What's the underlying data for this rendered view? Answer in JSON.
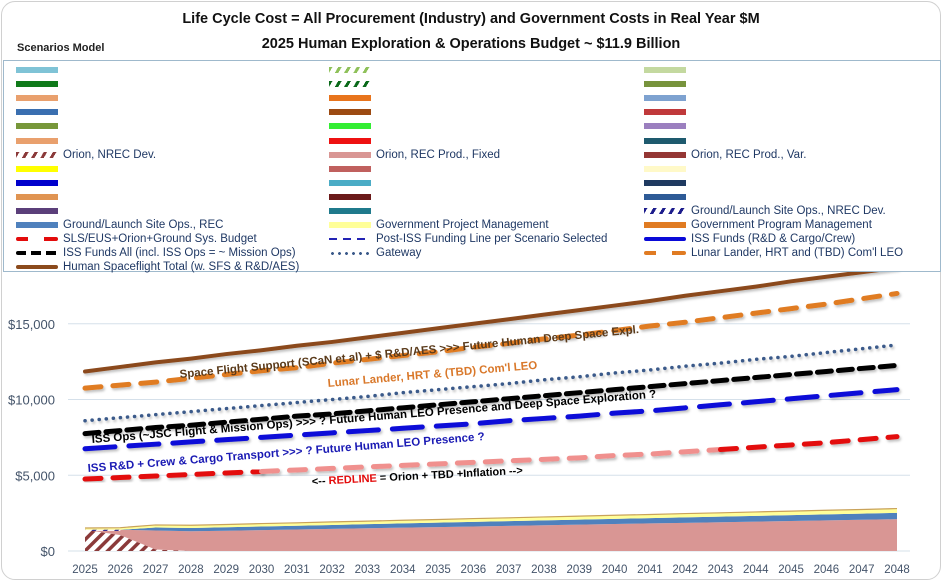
{
  "header": {
    "title_line1": "Life Cycle Cost = All Procurement (Industry) and Government Costs in Real Year $M",
    "title_line2": "2025 Human Exploration & Operations Budget ~ $11.9 Billion",
    "scenarios_label": "Scenarios Model"
  },
  "legend": {
    "columns": [
      [
        {
          "label": "",
          "color": "#7fc3d6",
          "style": "solid"
        },
        {
          "label": "",
          "color": "#0f7a1a",
          "style": "solid"
        },
        {
          "label": "",
          "color": "#e9a06d",
          "style": "solid"
        },
        {
          "label": "",
          "color": "#3a6fb0",
          "style": "solid"
        },
        {
          "label": "",
          "color": "#77973a",
          "style": "solid"
        },
        {
          "label": "",
          "color": "#e9a06d",
          "style": "solid"
        },
        {
          "label": "Orion, NREC Dev.",
          "color": "#8b3a3a",
          "style": "hatch"
        },
        {
          "label": "",
          "color": "#ffff00",
          "style": "solid"
        },
        {
          "label": "",
          "color": "#0000cc",
          "style": "solid"
        },
        {
          "label": "",
          "color": "#e09452",
          "style": "solid"
        },
        {
          "label": "",
          "color": "#5b3f7a",
          "style": "solid"
        },
        {
          "label": "Ground/Launch Site Ops., REC",
          "color": "#4f81bd",
          "style": "solid"
        },
        {
          "label": "SLS/EUS+Orion+Ground Sys. Budget",
          "color": "#e30b0b",
          "style": "dash-wide"
        },
        {
          "label": "ISS Funds All (incl. ISS Ops = ~  Mission Ops)",
          "color": "#000000",
          "style": "dash-medium"
        },
        {
          "label": "Human Spaceflight Total (w. SFS & R&D/AES)",
          "color": "#8b4a1c",
          "style": "line"
        }
      ],
      [
        {
          "label": "",
          "color": "#8fc15a",
          "style": "hatch"
        },
        {
          "label": "",
          "color": "#0a6a1a",
          "style": "hatch"
        },
        {
          "label": "",
          "color": "#e8741c",
          "style": "solid"
        },
        {
          "label": "",
          "color": "#9c4a12",
          "style": "solid"
        },
        {
          "label": "",
          "color": "#33ee33",
          "style": "solid"
        },
        {
          "label": "",
          "color": "#ee1111",
          "style": "solid"
        },
        {
          "label": "Orion, REC Prod., Fixed",
          "color": "#d99694",
          "style": "solid"
        },
        {
          "label": "",
          "color": "#c0605e",
          "style": "solid"
        },
        {
          "label": "",
          "color": "#4bacc6",
          "style": "solid"
        },
        {
          "label": "",
          "color": "#6b1a1a",
          "style": "solid"
        },
        {
          "label": "",
          "color": "#1f7a8c",
          "style": "solid"
        },
        {
          "label": "Government Project Management",
          "color": "#ffff99",
          "style": "solid"
        },
        {
          "label": "Post-ISS Funding Line per Scenario Selected",
          "color": "#2323b4",
          "style": "dash-small"
        },
        {
          "label": "Gateway",
          "color": "#3b5a8a",
          "style": "dot"
        }
      ],
      [
        {
          "label": "",
          "color": "#c4d9a0",
          "style": "solid"
        },
        {
          "label": "",
          "color": "#77933c",
          "style": "solid"
        },
        {
          "label": "",
          "color": "#7ea2d0",
          "style": "solid"
        },
        {
          "label": "",
          "color": "#c0393b",
          "style": "solid"
        },
        {
          "label": "",
          "color": "#9b7fbf",
          "style": "solid"
        },
        {
          "label": "",
          "color": "#1e5a6e",
          "style": "solid"
        },
        {
          "label": "Orion, REC Prod., Var.",
          "color": "#943634",
          "style": "solid"
        },
        {
          "label": "",
          "color": "#fff9c8",
          "style": "solid"
        },
        {
          "label": "",
          "color": "#1f3a60",
          "style": "solid"
        },
        {
          "label": "",
          "color": "#2d5a96",
          "style": "solid"
        },
        {
          "label": "Ground/Launch Site Ops., NREC Dev.",
          "color": "#1c1c8c",
          "style": "hatch"
        },
        {
          "label": "Government Program Management",
          "color": "#e07b22",
          "style": "solid"
        },
        {
          "label": "ISS Funds (R&D & Cargo/Crew)",
          "color": "#0a0ad8",
          "style": "line"
        },
        {
          "label": "Lunar Lander, HRT and (TBD) Com'l LEO",
          "color": "#e07b22",
          "style": "dash-wide"
        }
      ]
    ]
  },
  "chart_data": {
    "type": "line",
    "title": "Life Cycle Cost = All Procurement (Industry) and Government Costs in Real Year $M",
    "subtitle": "2025 Human Exploration & Operations Budget ~ $11.9 Billion",
    "xlabel": "",
    "ylabel": "",
    "x": [
      2025,
      2026,
      2027,
      2028,
      2029,
      2030,
      2031,
      2032,
      2033,
      2034,
      2035,
      2036,
      2037,
      2038,
      2039,
      2040,
      2041,
      2042,
      2043,
      2044,
      2045,
      2046,
      2047,
      2048
    ],
    "ylim": [
      0,
      18000
    ],
    "yticks": [
      0,
      5000,
      10000,
      15000
    ],
    "ytick_labels": [
      "$0",
      "$5,000",
      "$10,000",
      "$15,000"
    ],
    "grid": true,
    "legend_position": "top",
    "series": [
      {
        "name": "Human Spaceflight Total (w. SFS & R&D/AES)",
        "color": "#8b4a1c",
        "style": "line",
        "values": [
          11850,
          12150,
          12450,
          12700,
          13000,
          13250,
          13550,
          13800,
          14100,
          14400,
          14700,
          15000,
          15300,
          15600,
          15900,
          16200,
          16500,
          16850,
          17150,
          17450,
          17800,
          18100,
          18400,
          18700
        ]
      },
      {
        "name": "Lunar Lander, HRT and (TBD) Com'l LEO",
        "color": "#e07b22",
        "style": "dash-wide",
        "values": [
          10750,
          10950,
          11150,
          11400,
          11650,
          11900,
          12100,
          12400,
          12650,
          12900,
          13150,
          13450,
          13700,
          14000,
          14250,
          14550,
          14850,
          15100,
          15400,
          15700,
          16000,
          16300,
          16650,
          17000
        ]
      },
      {
        "name": "Gateway",
        "color": "#3b5a8a",
        "style": "dot",
        "values": [
          8600,
          8800,
          9000,
          9200,
          9400,
          9600,
          9800,
          10000,
          10200,
          10450,
          10650,
          10850,
          11050,
          11300,
          11500,
          11750,
          11950,
          12200,
          12400,
          12650,
          12850,
          13100,
          13350,
          13600
        ]
      },
      {
        "name": "ISS Funds All (incl. ISS Ops = ~  Mission Ops)",
        "color": "#000000",
        "style": "dash-medium",
        "values": [
          7750,
          7950,
          8150,
          8300,
          8500,
          8700,
          8900,
          9050,
          9250,
          9450,
          9650,
          9850,
          10050,
          10250,
          10450,
          10650,
          10850,
          11050,
          11250,
          11450,
          11650,
          11850,
          12050,
          12250
        ]
      },
      {
        "name": "ISS Funds (R&D & Cargo/Crew)",
        "color": "#0a0ad8",
        "style": "dash-long",
        "values": [
          6750,
          6900,
          7050,
          7200,
          7350,
          7500,
          7650,
          7800,
          7950,
          8100,
          8250,
          8400,
          8600,
          8750,
          8900,
          9100,
          9250,
          9450,
          9650,
          9850,
          10050,
          10250,
          10450,
          10650
        ]
      },
      {
        "name": "SLS/EUS+Orion+Ground Sys. Budget",
        "color": "#e30b0b",
        "style": "dash-wide",
        "segment_color_after_2030": "#f0908e",
        "segment_color_after_2043": "#e30b0b",
        "values": [
          4750,
          4850,
          4950,
          5050,
          5150,
          5250,
          5350,
          5450,
          5550,
          5650,
          5750,
          5850,
          5950,
          6050,
          6150,
          6300,
          6400,
          6550,
          6700,
          6850,
          7000,
          7150,
          7350,
          7550
        ]
      },
      {
        "name": "Post-ISS Funding Line per Scenario Selected",
        "color": "#2323b4",
        "style": "dash-small",
        "values": [
          0,
          0,
          0,
          0,
          0,
          0,
          0,
          0,
          0,
          0,
          0,
          0,
          0,
          0,
          0,
          0,
          0,
          0,
          0,
          0,
          0,
          0,
          0,
          0
        ]
      }
    ],
    "stacked_areas": [
      {
        "name": "Orion, NREC Dev.",
        "color": "#8b3a3a",
        "style": "hatch",
        "values": [
          1400,
          1050,
          100,
          0,
          0,
          0,
          0,
          0,
          0,
          0,
          0,
          0,
          0,
          0,
          0,
          0,
          0,
          0,
          0,
          0,
          0,
          0,
          0,
          0
        ]
      },
      {
        "name": "Orion, REC Prod., Fixed",
        "color": "#d99694",
        "values": [
          0,
          350,
          1250,
          1300,
          1340,
          1380,
          1420,
          1460,
          1500,
          1540,
          1580,
          1620,
          1660,
          1700,
          1740,
          1780,
          1820,
          1860,
          1900,
          1940,
          1980,
          2020,
          2060,
          2100
        ]
      },
      {
        "name": "Ground/Launch Site Ops., REC",
        "color": "#4f81bd",
        "values": [
          0,
          0,
          200,
          220,
          230,
          240,
          250,
          260,
          270,
          280,
          290,
          300,
          310,
          320,
          330,
          340,
          350,
          360,
          370,
          380,
          390,
          400,
          410,
          420
        ]
      },
      {
        "name": "Government Project Management",
        "color": "#ffff99",
        "values": [
          100,
          120,
          150,
          160,
          160,
          170,
          170,
          180,
          180,
          190,
          190,
          200,
          200,
          210,
          210,
          220,
          220,
          230,
          230,
          240,
          240,
          250,
          250,
          260
        ]
      },
      {
        "name": "Government Program Management",
        "color": "#e07b22",
        "values": [
          20,
          20,
          20,
          20,
          20,
          20,
          20,
          20,
          20,
          20,
          20,
          20,
          20,
          20,
          20,
          20,
          20,
          20,
          20,
          20,
          20,
          20,
          20,
          20
        ]
      }
    ],
    "annotations": [
      {
        "text": "Space Flight Support (SCaN et al) + $ R&D/AES >>> Future Human Deep Space Expl.",
        "color": "#5a3a1a"
      },
      {
        "text": "Lunar Lander, HRT & (TBD) Com'l LEO",
        "color": "#d9782a"
      },
      {
        "text": "ISS Ops (~JSC Flight & Mission  Ops) >>> ? Future Human LEO Presence and Deep Space  Exploration ?",
        "color": "#000000"
      },
      {
        "text": "ISS R&D + Crew & Cargo Transport >>> ? Future Human LEO Presence ?",
        "color": "#1a1ab4"
      },
      {
        "text_prefix": "<-- ",
        "text_highlight": "REDLINE",
        "text_suffix": " = Orion + TBD +Inflation  -->",
        "color": "#000000",
        "highlight_color": "#e30b0b"
      }
    ]
  }
}
